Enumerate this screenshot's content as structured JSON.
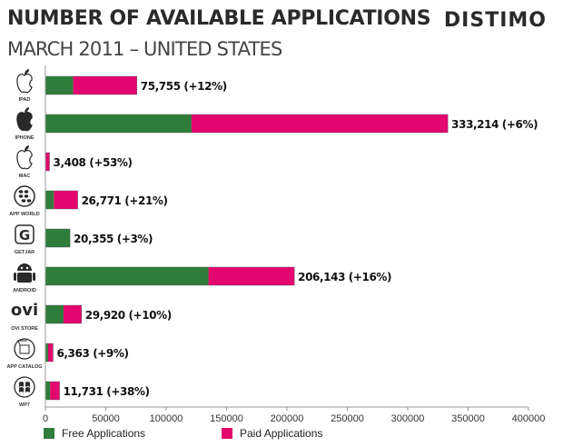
{
  "header": {
    "title": "NUMBER OF AVAILABLE APPLICATIONS",
    "subtitle": "MARCH 2011 – UNITED STATES",
    "brand": "DISTIMO"
  },
  "colors": {
    "free": "#2e7d3a",
    "paid": "#e3066f",
    "axis": "#999999"
  },
  "chart_data": {
    "type": "bar",
    "orientation": "horizontal",
    "stacked": true,
    "categories": [
      "IPAD",
      "IPHONE",
      "MAC",
      "APP WORLD",
      "GETJAR",
      "ANDROID",
      "OVI STORE",
      "APP CATALOG",
      "WP7"
    ],
    "icons": [
      "apple-icon",
      "apple-icon",
      "apple-icon",
      "blackberry-icon",
      "getjar-icon",
      "android-icon",
      "ovi-icon",
      "app-catalog-icon",
      "windows-icon"
    ],
    "series": [
      {
        "name": "Free Applications",
        "values": [
          23000,
          121000,
          0,
          7000,
          20355,
          135000,
          15000,
          2200,
          4000
        ]
      },
      {
        "name": "Paid Applications",
        "values": [
          52755,
          212214,
          3408,
          19771,
          0,
          71143,
          14920,
          4163,
          7731
        ]
      }
    ],
    "labels": [
      "75,755 (+12%)",
      "333,214 (+6%)",
      "3,408 (+53%)",
      "26,771 (+21%)",
      "20,355 (+3%)",
      "206,143 (+16%)",
      "29,920 (+10%)",
      "6,363 (+9%)",
      "11,731 (+38%)"
    ],
    "xlim": [
      0,
      400000
    ],
    "xticks": [
      0,
      50000,
      100000,
      150000,
      200000,
      250000,
      300000,
      350000,
      400000
    ],
    "grid": false,
    "legend_position": "bottom"
  },
  "legend": {
    "free": "Free Applications",
    "paid": "Paid Applications"
  }
}
